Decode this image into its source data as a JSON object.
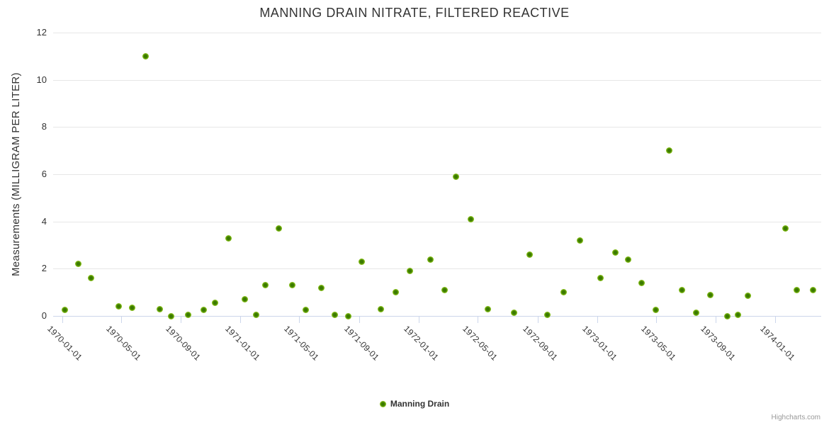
{
  "chart_data": {
    "type": "scatter",
    "title": "MANNING DRAIN NITRATE, FILTERED REACTIVE",
    "xlabel": "",
    "ylabel": "Measurements (MILLIGRAM PER LITER)",
    "legend_position": "bottom-center",
    "grid": "horizontal",
    "ylim": [
      0,
      12
    ],
    "yticks": [
      0,
      2,
      4,
      6,
      8,
      10,
      12
    ],
    "xlim": [
      "1969-12-13",
      "1974-04-05"
    ],
    "xticks": [
      "1970-01-01",
      "1970-05-01",
      "1970-09-01",
      "1971-01-01",
      "1971-05-01",
      "1971-09-01",
      "1972-01-01",
      "1972-05-01",
      "1972-09-01",
      "1973-01-01",
      "1973-05-01",
      "1973-09-01",
      "1974-01-01"
    ],
    "colors": {
      "marker_outer": "#8cc21e",
      "marker_inner": "#3b7a00",
      "gridline": "#e6e6e6",
      "axis_line": "#ccd6eb",
      "text": "#333333",
      "credits_text": "#999999"
    },
    "series": [
      {
        "name": "Manning Drain",
        "points": [
          {
            "x": "1970-01-06",
            "y": 0.25
          },
          {
            "x": "1970-02-02",
            "y": 2.2
          },
          {
            "x": "1970-03-01",
            "y": 1.6
          },
          {
            "x": "1970-04-26",
            "y": 0.4
          },
          {
            "x": "1970-05-24",
            "y": 0.35
          },
          {
            "x": "1970-06-21",
            "y": 11.0
          },
          {
            "x": "1970-07-19",
            "y": 0.3
          },
          {
            "x": "1970-08-11",
            "y": 0.0
          },
          {
            "x": "1970-09-16",
            "y": 0.05
          },
          {
            "x": "1970-10-18",
            "y": 0.25
          },
          {
            "x": "1970-11-09",
            "y": 0.55
          },
          {
            "x": "1970-12-07",
            "y": 3.3
          },
          {
            "x": "1971-01-09",
            "y": 0.7
          },
          {
            "x": "1971-02-02",
            "y": 0.05
          },
          {
            "x": "1971-02-21",
            "y": 1.3
          },
          {
            "x": "1971-03-21",
            "y": 3.7
          },
          {
            "x": "1971-04-17",
            "y": 1.3
          },
          {
            "x": "1971-05-15",
            "y": 0.25
          },
          {
            "x": "1971-06-15",
            "y": 1.2
          },
          {
            "x": "1971-07-13",
            "y": 0.05
          },
          {
            "x": "1971-08-09",
            "y": 0.0
          },
          {
            "x": "1971-09-07",
            "y": 2.3
          },
          {
            "x": "1971-10-16",
            "y": 0.3
          },
          {
            "x": "1971-11-15",
            "y": 1.0
          },
          {
            "x": "1971-12-14",
            "y": 1.9
          },
          {
            "x": "1972-01-25",
            "y": 2.4
          },
          {
            "x": "1972-02-23",
            "y": 1.1
          },
          {
            "x": "1972-03-18",
            "y": 5.9
          },
          {
            "x": "1972-04-17",
            "y": 4.1
          },
          {
            "x": "1972-05-22",
            "y": 0.3
          },
          {
            "x": "1972-07-15",
            "y": 0.15
          },
          {
            "x": "1972-08-15",
            "y": 2.6
          },
          {
            "x": "1972-09-20",
            "y": 0.05
          },
          {
            "x": "1972-10-24",
            "y": 1.0
          },
          {
            "x": "1972-11-27",
            "y": 3.2
          },
          {
            "x": "1973-01-08",
            "y": 1.6
          },
          {
            "x": "1973-02-07",
            "y": 2.7
          },
          {
            "x": "1973-03-05",
            "y": 2.4
          },
          {
            "x": "1973-04-02",
            "y": 1.4
          },
          {
            "x": "1973-05-01",
            "y": 0.25
          },
          {
            "x": "1973-05-28",
            "y": 7.0
          },
          {
            "x": "1973-06-24",
            "y": 1.1
          },
          {
            "x": "1973-07-23",
            "y": 0.15
          },
          {
            "x": "1973-08-20",
            "y": 0.9
          },
          {
            "x": "1973-09-25",
            "y": 0.0
          },
          {
            "x": "1973-10-17",
            "y": 0.05
          },
          {
            "x": "1973-11-05",
            "y": 0.85
          },
          {
            "x": "1974-01-22",
            "y": 3.7
          },
          {
            "x": "1974-02-14",
            "y": 1.1
          },
          {
            "x": "1974-03-19",
            "y": 1.1
          }
        ]
      }
    ],
    "credits": "Highcharts.com"
  }
}
